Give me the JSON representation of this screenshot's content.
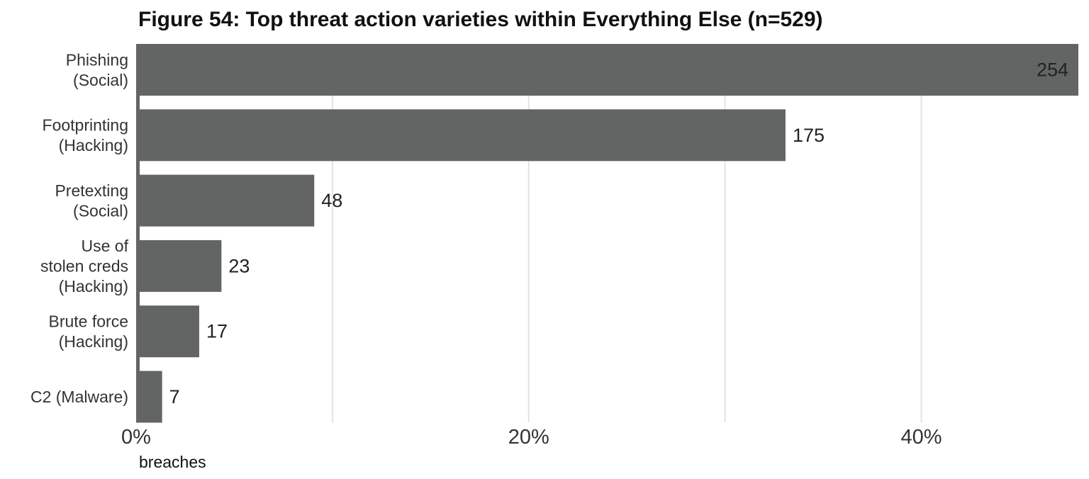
{
  "chart_data": {
    "type": "bar",
    "orientation": "horizontal",
    "title": "Figure 54: Top threat action varieties within Everything Else (n=529)",
    "n": 529,
    "categories": [
      [
        "Phishing",
        "(Social)"
      ],
      [
        "Footprinting",
        "(Hacking)"
      ],
      [
        "Pretexting",
        "(Social)"
      ],
      [
        "Use of",
        "stolen creds",
        "(Hacking)"
      ],
      [
        "Brute force",
        "(Hacking)"
      ],
      [
        "C2 (Malware)"
      ]
    ],
    "values": [
      254,
      175,
      48,
      23,
      17,
      7
    ],
    "value_labels": [
      "254",
      "175",
      "48",
      "23",
      "17",
      "7"
    ],
    "xlabel": "breaches",
    "xlim": [
      0,
      0.48
    ],
    "ticks": [
      0,
      0.2,
      0.4
    ],
    "tick_labels": [
      "0%",
      "20%",
      "40%"
    ],
    "gridlines": [
      0.1,
      0.2,
      0.3,
      0.4
    ],
    "grid": true,
    "bar_color": "#636564",
    "grid_color": "#e3e3e3"
  }
}
